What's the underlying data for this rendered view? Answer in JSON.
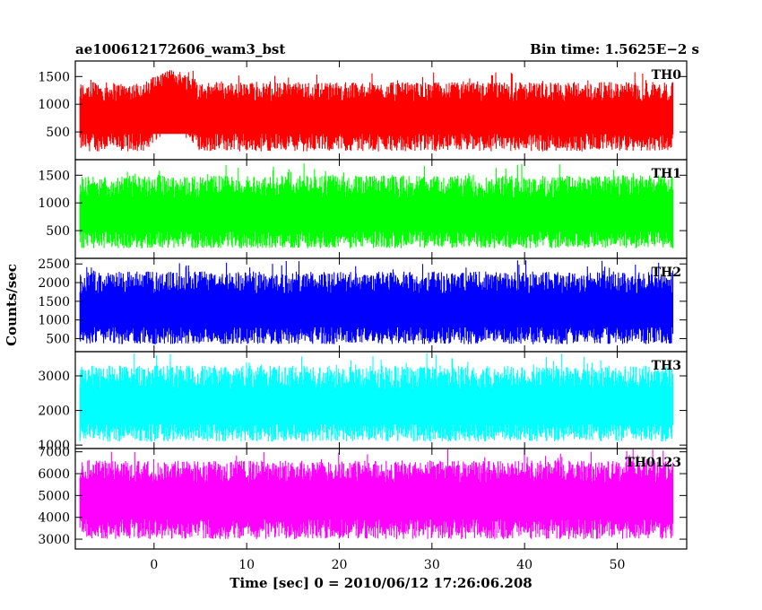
{
  "header": {
    "title": "ae100612172606_wam3_bst",
    "bin_time": "Bin time: 1.5625E−2 s"
  },
  "chart_data": {
    "type": "line",
    "title": "ae100612172606_wam3_bst",
    "subtitle": "Bin time: 1.5625E−2 s",
    "xlabel": "Time [sec] 0 = 2010/06/12 17:26:06.208",
    "ylabel": "Counts/sec",
    "xlim": [
      -8.5,
      57.5
    ],
    "x_range_data": [
      -8,
      56
    ],
    "x_ticks": [
      0,
      10,
      20,
      30,
      40,
      50
    ],
    "x_tick_labels": [
      "0",
      "10",
      "20",
      "30",
      "40",
      "50"
    ],
    "bin_time_s": 0.015625,
    "grid": false,
    "series": [
      {
        "name": "TH0",
        "color": "#ff0000",
        "ylim": [
          0,
          1780
        ],
        "y_ticks": [
          500,
          1000,
          1500
        ],
        "y_tick_labels": [
          "500",
          "1000",
          "1500"
        ],
        "mean": 780,
        "typical_low": 150,
        "typical_high": 1400,
        "burst": {
          "start": -1,
          "end": 5,
          "peak_mean": 1150
        }
      },
      {
        "name": "TH1",
        "color": "#00ff00",
        "ylim": [
          0,
          1780
        ],
        "y_ticks": [
          500,
          1000,
          1500
        ],
        "y_tick_labels": [
          "500",
          "1000",
          "1500"
        ],
        "mean": 780,
        "typical_low": 180,
        "typical_high": 1500
      },
      {
        "name": "TH2",
        "color": "#0000ff",
        "ylim": [
          150,
          2650
        ],
        "y_ticks": [
          500,
          1000,
          1500,
          2000,
          2500
        ],
        "y_tick_labels": [
          "500",
          "1000",
          "1500",
          "2000",
          "2500"
        ],
        "mean": 1250,
        "typical_low": 350,
        "typical_high": 2300
      },
      {
        "name": "TH3",
        "color": "#00ffff",
        "ylim": [
          900,
          3700
        ],
        "y_ticks": [
          1000,
          2000,
          3000
        ],
        "y_tick_labels": [
          "1000",
          "2000",
          "3000"
        ],
        "mean": 2100,
        "typical_low": 1100,
        "typical_high": 3300
      },
      {
        "name": "TH0123",
        "color": "#ff00ff",
        "ylim": [
          2550,
          7150
        ],
        "y_ticks": [
          3000,
          4000,
          5000,
          6000,
          7000
        ],
        "y_tick_labels": [
          "3000",
          "4000",
          "5000",
          "6000",
          "7000"
        ],
        "mean": 4800,
        "typical_low": 3000,
        "typical_high": 6600
      }
    ]
  }
}
